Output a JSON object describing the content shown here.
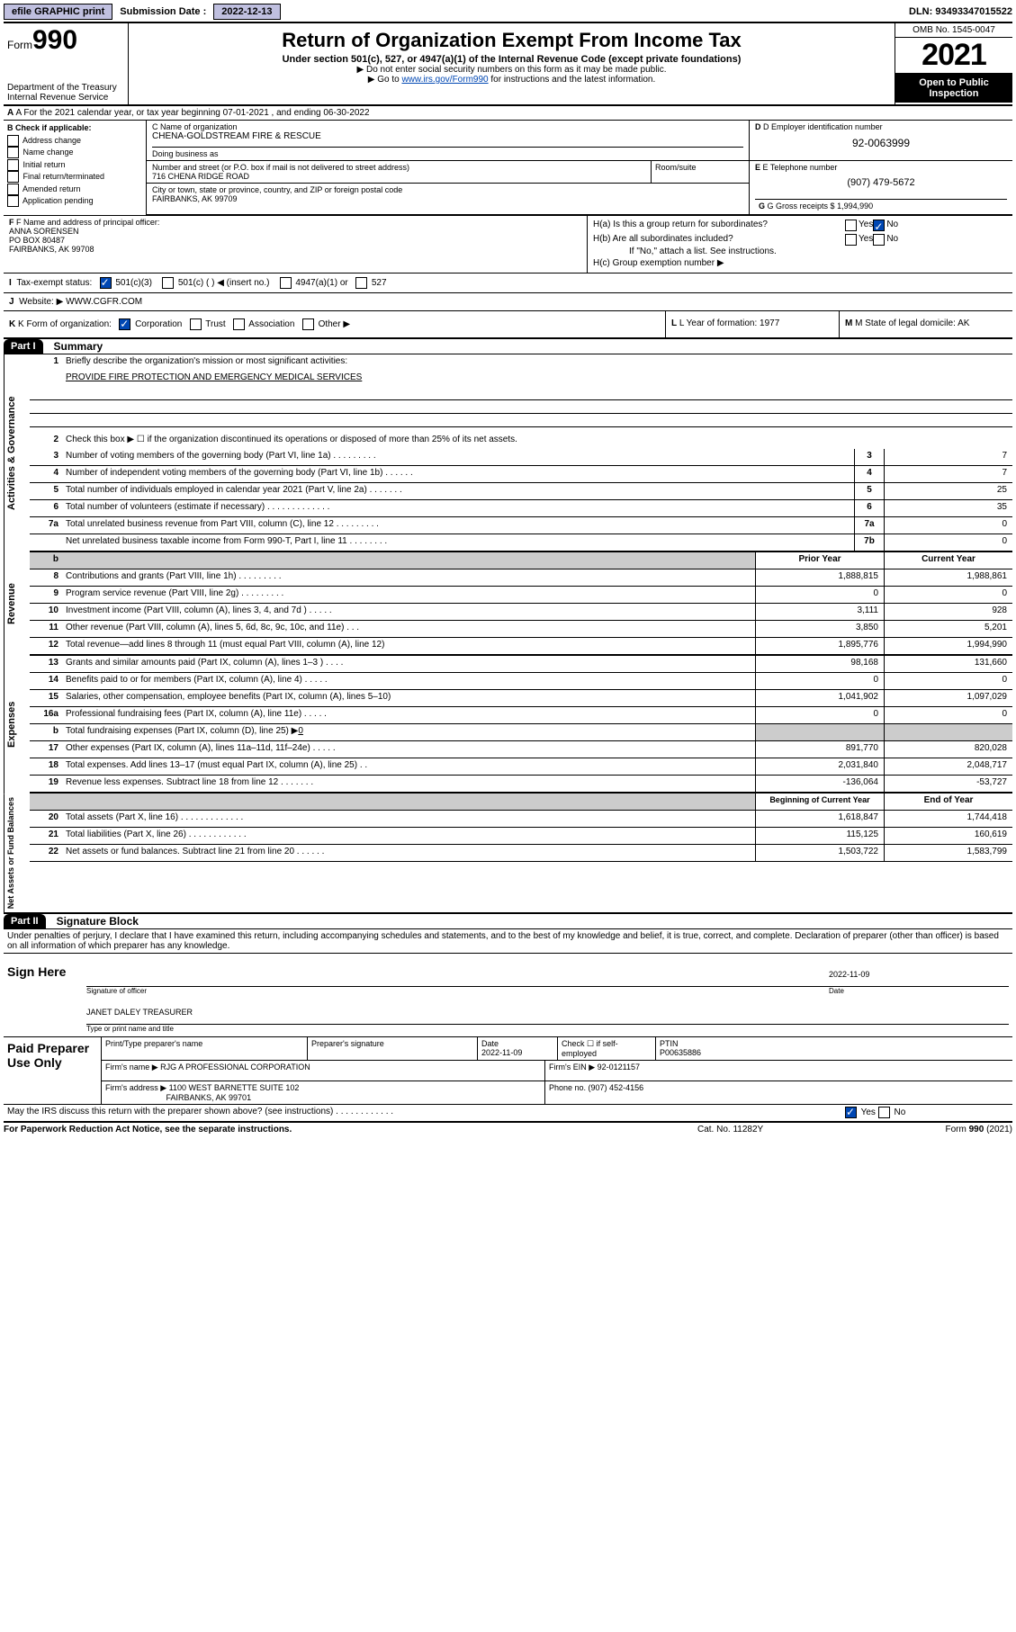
{
  "topbar": {
    "efile": "efile GRAPHIC print",
    "submission_label": "Submission Date : ",
    "submission_date": "2022-12-13",
    "dln": "DLN: 93493347015522"
  },
  "header": {
    "form_label": "Form",
    "form_num": "990",
    "dept": "Department of the Treasury",
    "irs": "Internal Revenue Service",
    "title": "Return of Organization Exempt From Income Tax",
    "subtitle": "Under section 501(c), 527, or 4947(a)(1) of the Internal Revenue Code (except private foundations)",
    "note1": "▶ Do not enter social security numbers on this form as it may be made public.",
    "note2_prefix": "▶ Go to ",
    "note2_link": "www.irs.gov/Form990",
    "note2_suffix": " for instructions and the latest information.",
    "omb": "OMB No. 1545-0047",
    "year": "2021",
    "inspect": "Open to Public Inspection"
  },
  "rowA": "A For the 2021 calendar year, or tax year beginning 07-01-2021   , and ending 06-30-2022",
  "B": {
    "title": "B Check if applicable:",
    "items": [
      "Address change",
      "Name change",
      "Initial return",
      "Final return/terminated",
      "Amended return",
      "Application pending"
    ]
  },
  "C": {
    "name_label": "C Name of organization",
    "name": "CHENA-GOLDSTREAM FIRE & RESCUE",
    "dba_label": "Doing business as",
    "dba": "",
    "street_label": "Number and street (or P.O. box if mail is not delivered to street address)",
    "street": "716 CHENA RIDGE ROAD",
    "room_label": "Room/suite",
    "city_label": "City or town, state or province, country, and ZIP or foreign postal code",
    "city": "FAIRBANKS, AK  99709"
  },
  "D": {
    "label": "D Employer identification number",
    "value": "92-0063999"
  },
  "E": {
    "label": "E Telephone number",
    "value": "(907) 479-5672"
  },
  "G": {
    "label": "G Gross receipts $ ",
    "value": "1,994,990"
  },
  "F": {
    "label": "F Name and address of principal officer:",
    "name": "ANNA SORENSEN",
    "addr1": "PO BOX 80487",
    "addr2": "FAIRBANKS, AK  99708"
  },
  "H": {
    "a": "H(a)  Is this a group return for subordinates?",
    "b": "H(b)  Are all subordinates included?",
    "b_note": "If \"No,\" attach a list. See instructions.",
    "c": "H(c)  Group exemption number ▶",
    "yes": "Yes",
    "no": "No"
  },
  "I": {
    "label": "I  Tax-exempt status:",
    "opts": [
      "501(c)(3)",
      "501(c) (  ) ◀ (insert no.)",
      "4947(a)(1) or",
      "527"
    ]
  },
  "J": {
    "label": "J  Website: ▶ ",
    "value": "WWW.CGFR.COM"
  },
  "K": {
    "label": "K Form of organization:",
    "opts": [
      "Corporation",
      "Trust",
      "Association",
      "Other ▶"
    ]
  },
  "L": {
    "label": "L Year of formation: ",
    "value": "1977"
  },
  "M": {
    "label": "M State of legal domicile: ",
    "value": "AK"
  },
  "part1": {
    "hdr": "Part I",
    "title": "Summary"
  },
  "gov": {
    "side": "Activities & Governance",
    "l1": "Briefly describe the organization's mission or most significant activities:",
    "l1_val": "PROVIDE FIRE PROTECTION AND EMERGENCY MEDICAL SERVICES",
    "l2": "Check this box ▶ ☐  if the organization discontinued its operations or disposed of more than 25% of its net assets.",
    "l3": "Number of voting members of the governing body (Part VI, line 1a)   .    .    .    .    .    .    .    .    .",
    "l4": "Number of independent voting members of the governing body (Part VI, line 1b)   .    .    .    .    .    .",
    "l5": "Total number of individuals employed in calendar year 2021 (Part V, line 2a)   .    .    .    .    .    .    .",
    "l6": "Total number of volunteers (estimate if necessary)   .    .    .    .    .    .    .    .    .    .    .    .    .",
    "l7a": "Total unrelated business revenue from Part VIII, column (C), line 12   .    .    .    .    .    .    .    .    .",
    "l7b": "Net unrelated business taxable income from Form 990-T, Part I, line 11   .    .    .    .    .    .    .    .",
    "v3": "7",
    "v4": "7",
    "v5": "25",
    "v6": "35",
    "v7a": "0",
    "v7b": "0"
  },
  "rev": {
    "side": "Revenue",
    "hdr_prior": "Prior Year",
    "hdr_curr": "Current Year",
    "rows": [
      {
        "n": "8",
        "d": "Contributions and grants (Part VIII, line 1h)   .    .    .    .    .    .    .    .    .",
        "p": "1,888,815",
        "c": "1,988,861"
      },
      {
        "n": "9",
        "d": "Program service revenue (Part VIII, line 2g)   .    .    .    .    .    .    .    .    .",
        "p": "0",
        "c": "0"
      },
      {
        "n": "10",
        "d": "Investment income (Part VIII, column (A), lines 3, 4, and 7d )   .    .    .    .    .",
        "p": "3,111",
        "c": "928"
      },
      {
        "n": "11",
        "d": "Other revenue (Part VIII, column (A), lines 5, 6d, 8c, 9c, 10c, and 11e)   .    .    .",
        "p": "3,850",
        "c": "5,201"
      },
      {
        "n": "12",
        "d": "Total revenue—add lines 8 through 11 (must equal Part VIII, column (A), line 12)",
        "p": "1,895,776",
        "c": "1,994,990"
      }
    ]
  },
  "exp": {
    "side": "Expenses",
    "rows": [
      {
        "n": "13",
        "d": "Grants and similar amounts paid (Part IX, column (A), lines 1–3 )   .    .    .    .",
        "p": "98,168",
        "c": "131,660"
      },
      {
        "n": "14",
        "d": "Benefits paid to or for members (Part IX, column (A), line 4)   .    .    .    .    .",
        "p": "0",
        "c": "0"
      },
      {
        "n": "15",
        "d": "Salaries, other compensation, employee benefits (Part IX, column (A), lines 5–10)",
        "p": "1,041,902",
        "c": "1,097,029"
      },
      {
        "n": "16a",
        "d": "Professional fundraising fees (Part IX, column (A), line 11e)   .    .    .    .    .",
        "p": "0",
        "c": "0"
      }
    ],
    "l16b": "Total fundraising expenses (Part IX, column (D), line 25) ▶",
    "l16b_val": "0",
    "rows2": [
      {
        "n": "17",
        "d": "Other expenses (Part IX, column (A), lines 11a–11d, 11f–24e)   .    .    .    .    .",
        "p": "891,770",
        "c": "820,028"
      },
      {
        "n": "18",
        "d": "Total expenses. Add lines 13–17 (must equal Part IX, column (A), line 25)   .    .",
        "p": "2,031,840",
        "c": "2,048,717"
      },
      {
        "n": "19",
        "d": "Revenue less expenses. Subtract line 18 from line 12   .    .    .    .    .    .    .",
        "p": "-136,064",
        "c": "-53,727"
      }
    ]
  },
  "net": {
    "side": "Net Assets or Fund Balances",
    "hdr_prior": "Beginning of Current Year",
    "hdr_curr": "End of Year",
    "rows": [
      {
        "n": "20",
        "d": "Total assets (Part X, line 16)   .    .    .    .    .    .    .    .    .    .    .    .    .",
        "p": "1,618,847",
        "c": "1,744,418"
      },
      {
        "n": "21",
        "d": "Total liabilities (Part X, line 26)   .    .    .    .    .    .    .    .    .    .    .    .",
        "p": "115,125",
        "c": "160,619"
      },
      {
        "n": "22",
        "d": "Net assets or fund balances. Subtract line 21 from line 20   .    .    .    .    .    .",
        "p": "1,503,722",
        "c": "1,583,799"
      }
    ]
  },
  "part2": {
    "hdr": "Part II",
    "title": "Signature Block",
    "decl": "Under penalties of perjury, I declare that I have examined this return, including accompanying schedules and statements, and to the best of my knowledge and belief, it is true, correct, and complete. Declaration of preparer (other than officer) is based on all information of which preparer has any knowledge."
  },
  "sign": {
    "here": "Sign Here",
    "sig_label": "Signature of officer",
    "date_label": "Date",
    "date": "2022-11-09",
    "name": "JANET DALEY TREASURER",
    "name_label": "Type or print name and title"
  },
  "prep": {
    "title": "Paid Preparer Use Only",
    "h1": "Print/Type preparer's name",
    "h2": "Preparer's signature",
    "h3": "Date",
    "h3_val": "2022-11-09",
    "h4": "Check ☐ if self-employed",
    "h5": "PTIN",
    "h5_val": "P00635886",
    "firm_label": "Firm's name     ▶",
    "firm": "RJG A PROFESSIONAL CORPORATION",
    "ein_label": "Firm's EIN ▶ ",
    "ein": "92-0121157",
    "addr_label": "Firm's address ▶",
    "addr1": "1100 WEST BARNETTE SUITE 102",
    "addr2": "FAIRBANKS, AK  99701",
    "phone_label": "Phone no. ",
    "phone": "(907) 452-4156"
  },
  "discuss": "May the IRS discuss this return with the preparer shown above? (see instructions)   .    .    .    .    .    .    .    .    .    .    .    .",
  "footer": {
    "f1": "For Paperwork Reduction Act Notice, see the separate instructions.",
    "f2": "Cat. No. 11282Y",
    "f3": "Form 990 (2021)"
  }
}
